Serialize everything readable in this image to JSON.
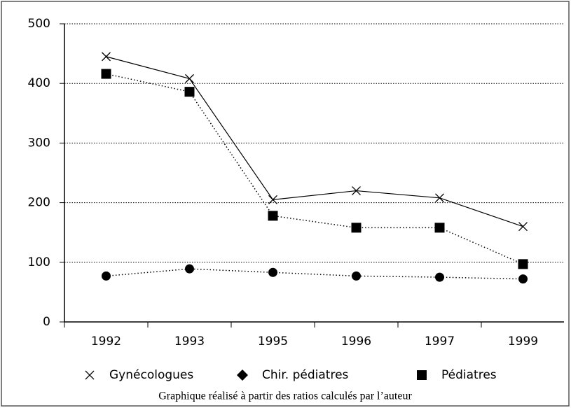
{
  "chart_data": {
    "type": "line",
    "categories": [
      "1992",
      "1993",
      "1995",
      "1996",
      "1997",
      "1999"
    ],
    "series": [
      {
        "name": "Gynécologues",
        "color": "#000000",
        "line_style": "solid",
        "marker": "x",
        "values": [
          445,
          408,
          205,
          220,
          208,
          160
        ]
      },
      {
        "name": "Chir. pédiatres",
        "color": "#000000",
        "line_style": "dotted",
        "marker": "circle",
        "legend_marker": "diamond",
        "values": [
          77,
          89,
          83,
          77,
          75,
          72
        ]
      },
      {
        "name": "Pédiatres",
        "color": "#000000",
        "line_style": "dotted",
        "marker": "square",
        "values": [
          416,
          386,
          178,
          158,
          158,
          97
        ]
      }
    ],
    "ylim": [
      0,
      500
    ],
    "yticks": [
      0,
      100,
      200,
      300,
      400,
      500
    ],
    "grid": true,
    "caption": "Graphique réalisé à partir des ratios calculés par l’auteur"
  }
}
